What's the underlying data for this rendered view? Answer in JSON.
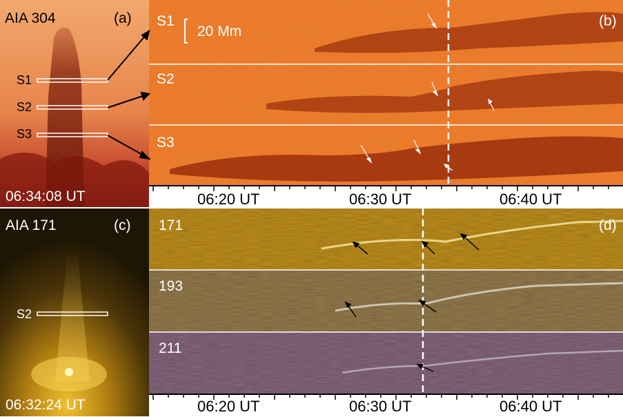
{
  "panel_a": {
    "instrument": "AIA 304",
    "tag": "(a)",
    "time": "06:34:08 UT",
    "slits": [
      "S1",
      "S2",
      "S3"
    ]
  },
  "panel_b": {
    "tag": "(b)",
    "strips": [
      "S1",
      "S2",
      "S3"
    ],
    "scale_label": "20 Mm"
  },
  "panel_c": {
    "instrument": "AIA 171",
    "tag": "(c)",
    "time": "06:32:24 UT",
    "slit": "S2"
  },
  "panel_d": {
    "tag": "(d)",
    "strips": [
      "171",
      "193",
      "211"
    ]
  },
  "time_axis": {
    "ticks": [
      "06:20 UT",
      "06:30 UT",
      "06:40 UT"
    ]
  },
  "colors": {
    "aia304": "#e86a18",
    "aia171": "#d4a020",
    "aia193": "#b8955e",
    "aia211": "#a77a9a"
  }
}
